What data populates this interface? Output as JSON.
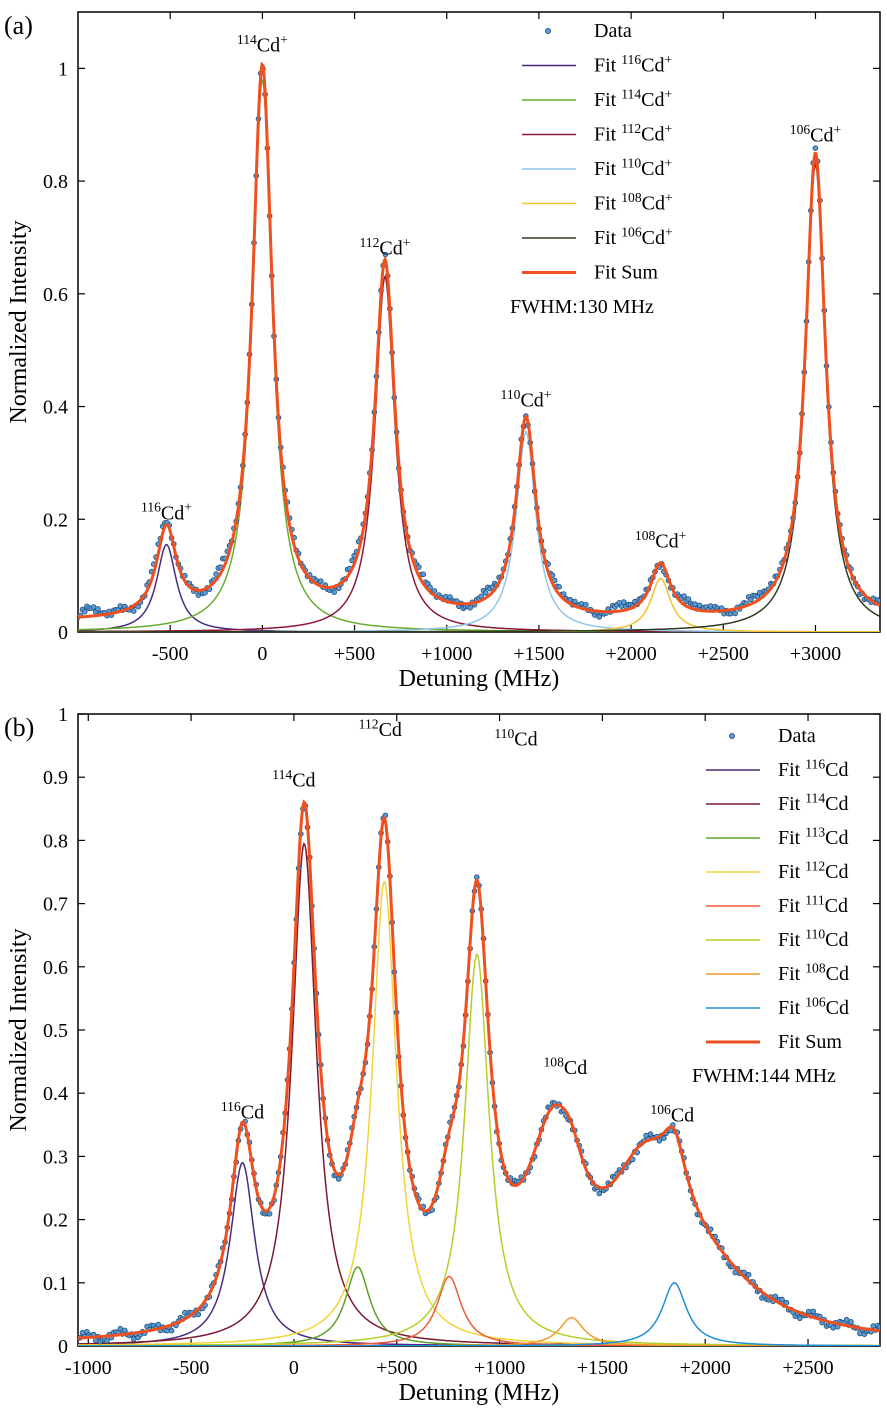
{
  "colors": {
    "data": "#5b9bd5",
    "data_edge": "#1f4e79",
    "fit_sum": "#ef5020"
  },
  "chart_data": [
    {
      "panel_label": "(a)",
      "type": "line",
      "xlabel": "Detuning (MHz)",
      "ylabel": "Normalized Intensity",
      "xlim": [
        -1000,
        3350
      ],
      "ylim": [
        0,
        1.1
      ],
      "xticks": [
        -500,
        0,
        500,
        1000,
        1500,
        2000,
        2500,
        3000
      ],
      "xtick_labels": [
        "-500",
        "0",
        "+500",
        "+1000",
        "+1500",
        "+2000",
        "+2500",
        "+3000"
      ],
      "yticks": [
        0,
        0.2,
        0.4,
        0.6,
        0.8,
        1
      ],
      "ytick_labels": [
        "0",
        "0.2",
        "0.4",
        "0.6",
        "0.8",
        "1"
      ],
      "fwhm_MHz": 130,
      "fwhm_label": "FWHM:130 MHz",
      "background": 0.018,
      "components": [
        {
          "mass": "116",
          "name": "Fit ",
          "sup": "116",
          "base": "Cd",
          "ion": "+",
          "center": -520,
          "amp": 0.155,
          "color": "#4b2b7f"
        },
        {
          "mass": "114",
          "name": "Fit ",
          "sup": "114",
          "base": "Cd",
          "ion": "+",
          "center": 0,
          "amp": 0.98,
          "color": "#6aab2e"
        },
        {
          "mass": "112",
          "name": "Fit ",
          "sup": "112",
          "base": "Cd",
          "ion": "+",
          "center": 665,
          "amp": 0.63,
          "color": "#8b1a3a"
        },
        {
          "mass": "110",
          "name": "Fit ",
          "sup": "110",
          "base": "Cd",
          "ion": "+",
          "center": 1430,
          "amp": 0.355,
          "color": "#8fc6ea"
        },
        {
          "mass": "108",
          "name": "Fit ",
          "sup": "108",
          "base": "Cd",
          "ion": "+",
          "center": 2160,
          "amp": 0.095,
          "color": "#f2c12e"
        },
        {
          "mass": "106",
          "name": "Fit ",
          "sup": "106",
          "base": "Cd",
          "ion": "+",
          "center": 3000,
          "amp": 0.83,
          "color": "#2e3b1f"
        }
      ],
      "peak_labels": [
        {
          "sup": "116",
          "base": "Cd",
          "ion": "+",
          "x": -520,
          "y": 0.2
        },
        {
          "sup": "114",
          "base": "Cd",
          "ion": "+",
          "x": 0,
          "y": 1.03
        },
        {
          "sup": "112",
          "base": "Cd",
          "ion": "+",
          "x": 665,
          "y": 0.67
        },
        {
          "sup": "110",
          "base": "Cd",
          "ion": "+",
          "x": 1430,
          "y": 0.4
        },
        {
          "sup": "108",
          "base": "Cd",
          "ion": "+",
          "x": 2160,
          "y": 0.15
        },
        {
          "sup": "106",
          "base": "Cd",
          "ion": "+",
          "x": 3000,
          "y": 0.87
        }
      ],
      "legend": {
        "data_label": "Data",
        "sum_label": "Fit Sum",
        "position": "top-right"
      }
    },
    {
      "panel_label": "(b)",
      "type": "line",
      "xlabel": "Detuning (MHz)",
      "ylabel": "Normalized Intensity",
      "xlim": [
        -1050,
        2850
      ],
      "ylim": [
        0,
        1.0
      ],
      "xticks": [
        -1000,
        -500,
        0,
        500,
        1000,
        1500,
        2000,
        2500
      ],
      "xtick_labels": [
        "-1000",
        "-500",
        "0",
        "+500",
        "+1000",
        "+1500",
        "+2000",
        "+2500"
      ],
      "yticks": [
        0,
        0.1,
        0.2,
        0.3,
        0.4,
        0.5,
        0.6,
        0.7,
        0.8,
        0.9,
        1
      ],
      "ytick_labels": [
        "0",
        "0.1",
        "0.2",
        "0.3",
        "0.4",
        "0.5",
        "0.6",
        "0.7",
        "0.8",
        "0.9",
        "1"
      ],
      "fwhm_MHz": 144,
      "fwhm_label": "FWHM:144 MHz",
      "background": 0.0,
      "components": [
        {
          "mass": "116",
          "name": "Fit ",
          "sup": "116",
          "base": "Cd",
          "ion": "",
          "center": -250,
          "amp": 0.29,
          "color": "#4b2b7f"
        },
        {
          "mass": "114",
          "name": "Fit ",
          "sup": "114",
          "base": "Cd",
          "ion": "",
          "center": 50,
          "amp": 0.795,
          "color": "#7a1a30"
        },
        {
          "mass": "113",
          "name": "Fit ",
          "sup": "113",
          "base": "Cd",
          "ion": "",
          "center": 310,
          "amp": 0.125,
          "color": "#5fa02a"
        },
        {
          "mass": "112",
          "name": "Fit ",
          "sup": "112",
          "base": "Cd",
          "ion": "",
          "center": 440,
          "amp": 0.735,
          "color": "#f2d43a"
        },
        {
          "mass": "111",
          "name": "Fit ",
          "sup": "111",
          "base": "Cd",
          "ion": "",
          "center": 755,
          "amp": 0.11,
          "color": "#f05a3a"
        },
        {
          "mass": "110",
          "name": "Fit ",
          "sup": "110",
          "base": "Cd",
          "ion": "",
          "center": 890,
          "amp": 0.62,
          "color": "#b5cf2a"
        },
        {
          "mass": "108",
          "name": "Fit ",
          "sup": "108",
          "base": "Cd",
          "ion": "",
          "center": 1350,
          "amp": 0.045,
          "color": "#f29a2e"
        },
        {
          "mass": "106",
          "name": "Fit ",
          "sup": "106",
          "base": "Cd",
          "ion": "",
          "center": 1850,
          "amp": 0.1,
          "color": "#1f8fd6"
        }
      ],
      "extra_shoulders": [
        {
          "center": 1260,
          "amp": 0.27,
          "width_MHz": 320
        },
        {
          "center": 1700,
          "amp": 0.2,
          "width_MHz": 420
        },
        {
          "center": 1950,
          "amp": 0.09,
          "width_MHz": 700
        }
      ],
      "peak_labels": [
        {
          "sup": "116",
          "base": "Cd",
          "ion": "",
          "x": -250,
          "y": 0.36
        },
        {
          "sup": "114",
          "base": "Cd",
          "ion": "",
          "x": 0,
          "y": 0.885
        },
        {
          "sup": "112",
          "base": "Cd",
          "ion": "",
          "x": 420,
          "y": 0.965
        },
        {
          "sup": "110",
          "base": "Cd",
          "ion": "",
          "x": 1080,
          "y": 0.95
        },
        {
          "sup": "108",
          "base": "Cd",
          "ion": "",
          "x": 1320,
          "y": 0.43
        },
        {
          "sup": "106",
          "base": "Cd",
          "ion": "",
          "x": 1840,
          "y": 0.355
        }
      ],
      "legend": {
        "data_label": "Data",
        "sum_label": "Fit Sum",
        "position": "top-right"
      }
    }
  ]
}
